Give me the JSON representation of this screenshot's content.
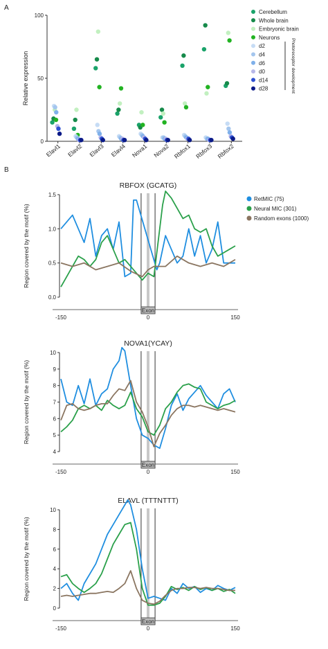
{
  "panels": {
    "a": "A",
    "b": "B"
  },
  "chart_data": [
    {
      "type": "scatter",
      "ylabel": "Relative expression",
      "ylim": [
        0,
        100
      ],
      "yticks": [
        0,
        50,
        100
      ],
      "categories": [
        "Elavl1",
        "Elavl2",
        "Elavl3",
        "Elavl4",
        "Nova1",
        "Nova2",
        "Rbfox1",
        "Rbfox3",
        "Rbfox2"
      ],
      "legend_side_label": "Photoreceptor development",
      "series": [
        {
          "name": "Cerebellum",
          "color": "#1aa36a",
          "values": [
            15,
            10,
            58,
            22,
            13,
            19,
            60,
            73,
            44
          ]
        },
        {
          "name": "Whole brain",
          "color": "#168a4a",
          "values": [
            18,
            17,
            65,
            25,
            11,
            25,
            68,
            92,
            46
          ]
        },
        {
          "name": "Embryonic brain",
          "color": "#c2f0c0",
          "values": [
            25,
            25,
            87,
            30,
            23,
            22,
            30,
            38,
            86
          ]
        },
        {
          "name": "Neurons",
          "color": "#22b322",
          "values": [
            17,
            5,
            43,
            42,
            13,
            15,
            27,
            43,
            80
          ]
        },
        {
          "name": "d2",
          "color": "#c6dcf5",
          "values": [
            28,
            4,
            13,
            4,
            6,
            3,
            5,
            3,
            14
          ]
        },
        {
          "name": "d4",
          "color": "#a4c6ee",
          "values": [
            27,
            3,
            8,
            3,
            5,
            3,
            4,
            2,
            10
          ]
        },
        {
          "name": "d6",
          "color": "#7fb0ea",
          "values": [
            23,
            2,
            6,
            2,
            4,
            2,
            3,
            2,
            7
          ]
        },
        {
          "name": "d0",
          "color": "#b7b7e8",
          "values": [
            12,
            1,
            3,
            2,
            3,
            2,
            2,
            1,
            4
          ]
        },
        {
          "name": "d14",
          "color": "#2d50d2",
          "values": [
            10,
            1,
            2,
            1,
            2,
            1,
            2,
            1,
            3
          ]
        },
        {
          "name": "d28",
          "color": "#0b1a88",
          "values": [
            6,
            1,
            1,
            1,
            1,
            1,
            1,
            1,
            2
          ]
        }
      ]
    },
    {
      "type": "line",
      "title": "RBFOX (GCATG)",
      "ylabel": "Region covered by the motif (%)",
      "ylim": [
        0,
        1.5
      ],
      "yticks": [
        0.0,
        0.5,
        1.0,
        1.5
      ],
      "xticks": [
        -150,
        0,
        150
      ],
      "xlim": [
        -150,
        150
      ],
      "exon_label": "Exon",
      "legend": "top-right",
      "series": [
        {
          "name": "RetMIC (75)",
          "color": "#1f8ee0",
          "x": [
            -150,
            -140,
            -130,
            -120,
            -110,
            -100,
            -90,
            -80,
            -70,
            -60,
            -50,
            -40,
            -30,
            -25,
            -20,
            15,
            20,
            30,
            40,
            50,
            60,
            70,
            80,
            90,
            100,
            110,
            120,
            130,
            140,
            150
          ],
          "y": [
            1.0,
            1.1,
            1.2,
            1.0,
            0.8,
            1.15,
            0.6,
            0.9,
            1.0,
            0.7,
            1.1,
            0.3,
            0.35,
            1.42,
            1.42,
            0.4,
            0.5,
            0.9,
            0.7,
            0.5,
            0.6,
            1.0,
            0.6,
            0.9,
            0.5,
            0.7,
            1.1,
            0.5,
            0.5,
            0.5
          ]
        },
        {
          "name": "Neural MIC (301)",
          "color": "#2aa04a",
          "x": [
            -150,
            -140,
            -130,
            -120,
            -110,
            -100,
            -90,
            -80,
            -70,
            -60,
            -50,
            -40,
            -30,
            -20,
            -10,
            0,
            10,
            20,
            25,
            30,
            40,
            50,
            60,
            70,
            80,
            90,
            100,
            110,
            120,
            130,
            140,
            150
          ],
          "y": [
            0.15,
            0.3,
            0.45,
            0.6,
            0.55,
            0.45,
            0.55,
            0.8,
            0.9,
            0.7,
            0.5,
            0.55,
            0.45,
            0.35,
            0.25,
            0.35,
            0.3,
            1.0,
            1.35,
            1.55,
            1.45,
            1.3,
            1.15,
            1.2,
            1.0,
            0.95,
            1.0,
            0.75,
            0.6,
            0.65,
            0.7,
            0.75
          ]
        },
        {
          "name": "Random exons (1000)",
          "color": "#8a7560",
          "x": [
            -150,
            -130,
            -110,
            -90,
            -70,
            -50,
            -30,
            -10,
            0,
            10,
            30,
            50,
            70,
            90,
            110,
            130,
            150
          ],
          "y": [
            0.5,
            0.45,
            0.5,
            0.4,
            0.45,
            0.5,
            0.38,
            0.3,
            0.4,
            0.45,
            0.45,
            0.6,
            0.5,
            0.45,
            0.5,
            0.45,
            0.55
          ]
        }
      ]
    },
    {
      "type": "line",
      "title": "NOVA1(YCAY)",
      "ylabel": "Region covered by the motif (%)",
      "ylim": [
        4,
        10
      ],
      "yticks": [
        4,
        5,
        6,
        7,
        8,
        9,
        10
      ],
      "xticks": [
        -150,
        0,
        150
      ],
      "xlim": [
        -150,
        150
      ],
      "exon_label": "Exon",
      "series": [
        {
          "name": "RetMIC (75)",
          "color": "#1f8ee0",
          "x": [
            -150,
            -140,
            -130,
            -120,
            -110,
            -100,
            -90,
            -80,
            -70,
            -60,
            -50,
            -45,
            -40,
            -30,
            -20,
            -10,
            0,
            10,
            20,
            30,
            40,
            50,
            60,
            70,
            80,
            90,
            100,
            110,
            120,
            130,
            140,
            150
          ],
          "y": [
            8.4,
            7.0,
            6.8,
            8.0,
            6.9,
            8.4,
            6.8,
            7.5,
            7.8,
            9.0,
            9.5,
            10.3,
            10.1,
            8.0,
            6.0,
            5.0,
            4.8,
            4.4,
            4.2,
            5.4,
            6.8,
            7.5,
            6.5,
            7.2,
            7.6,
            8.0,
            7.4,
            7.0,
            6.6,
            7.5,
            7.8,
            7.0
          ]
        },
        {
          "name": "Neural MIC (301)",
          "color": "#2aa04a",
          "x": [
            -150,
            -140,
            -130,
            -120,
            -110,
            -100,
            -90,
            -80,
            -70,
            -60,
            -50,
            -40,
            -30,
            -20,
            -10,
            0,
            10,
            20,
            30,
            40,
            50,
            60,
            70,
            80,
            90,
            100,
            110,
            120,
            130,
            140,
            150
          ],
          "y": [
            5.2,
            5.5,
            5.9,
            6.6,
            6.8,
            6.6,
            6.8,
            6.5,
            7.1,
            6.8,
            6.6,
            6.8,
            7.6,
            6.6,
            6.1,
            5.2,
            5.0,
            5.6,
            6.6,
            7.0,
            7.6,
            8.0,
            8.1,
            7.9,
            7.8,
            7.0,
            6.8,
            6.6,
            6.8,
            6.9,
            7.1
          ]
        },
        {
          "name": "Random exons (1000)",
          "color": "#8a7560",
          "x": [
            -150,
            -140,
            -130,
            -120,
            -110,
            -100,
            -90,
            -80,
            -70,
            -60,
            -50,
            -40,
            -30,
            -20,
            -10,
            0,
            10,
            20,
            30,
            40,
            50,
            60,
            70,
            80,
            90,
            100,
            110,
            120,
            130,
            140,
            150
          ],
          "y": [
            5.9,
            6.8,
            6.9,
            6.6,
            6.5,
            6.6,
            6.8,
            6.9,
            6.9,
            7.4,
            7.8,
            7.7,
            8.3,
            7.0,
            6.4,
            5.5,
            4.3,
            5.1,
            5.6,
            6.2,
            6.6,
            6.8,
            6.8,
            6.7,
            6.8,
            6.7,
            6.6,
            6.5,
            6.6,
            6.5,
            6.4
          ]
        }
      ]
    },
    {
      "type": "line",
      "title": "ELAVL (TTTNTTT)",
      "ylabel": "Region covered by the motif (%)",
      "ylim": [
        0,
        10
      ],
      "yticks": [
        0,
        2,
        4,
        6,
        8,
        10
      ],
      "xticks": [
        -150,
        0,
        150
      ],
      "xlim": [
        -150,
        150
      ],
      "exon_label": "Exon",
      "series": [
        {
          "name": "RetMIC (75)",
          "color": "#1f8ee0",
          "x": [
            -150,
            -140,
            -130,
            -120,
            -110,
            -100,
            -90,
            -80,
            -70,
            -60,
            -50,
            -40,
            -35,
            -30,
            -20,
            -10,
            0,
            10,
            20,
            30,
            40,
            50,
            60,
            70,
            80,
            90,
            100,
            110,
            120,
            130,
            140,
            150
          ],
          "y": [
            2.0,
            2.5,
            1.5,
            0.8,
            2.5,
            3.5,
            4.5,
            6.0,
            7.5,
            8.5,
            9.5,
            10.5,
            11.0,
            10.5,
            8.0,
            4.0,
            1.0,
            1.2,
            1.0,
            0.8,
            2.0,
            1.5,
            2.5,
            2.0,
            2.2,
            1.6,
            2.0,
            1.8,
            2.3,
            2.0,
            1.8,
            2.1
          ]
        },
        {
          "name": "Neural MIC (301)",
          "color": "#2aa04a",
          "x": [
            -150,
            -140,
            -130,
            -120,
            -110,
            -100,
            -90,
            -80,
            -70,
            -60,
            -50,
            -40,
            -30,
            -20,
            -10,
            0,
            10,
            20,
            30,
            40,
            50,
            60,
            70,
            80,
            90,
            100,
            110,
            120,
            130,
            140,
            150
          ],
          "y": [
            3.2,
            3.4,
            2.5,
            2.0,
            1.6,
            2.0,
            2.5,
            3.5,
            5.0,
            6.5,
            7.5,
            8.5,
            8.7,
            6.0,
            2.0,
            0.3,
            0.3,
            0.5,
            1.2,
            2.2,
            1.9,
            2.1,
            1.8,
            2.2,
            1.9,
            2.1,
            1.8,
            2.0,
            1.7,
            1.9,
            1.5
          ]
        },
        {
          "name": "Random exons (1000)",
          "color": "#8a7560",
          "x": [
            -150,
            -140,
            -130,
            -120,
            -110,
            -100,
            -90,
            -80,
            -70,
            -60,
            -50,
            -40,
            -30,
            -20,
            -10,
            0,
            10,
            20,
            30,
            40,
            50,
            60,
            70,
            80,
            90,
            100,
            110,
            120,
            130,
            140,
            150
          ],
          "y": [
            1.2,
            1.3,
            1.2,
            1.3,
            1.4,
            1.5,
            1.5,
            1.6,
            1.7,
            1.6,
            2.0,
            2.5,
            3.8,
            2.0,
            0.8,
            0.5,
            0.4,
            0.7,
            1.3,
            1.8,
            2.0,
            2.0,
            2.1,
            2.1,
            2.0,
            2.1,
            2.0,
            2.0,
            1.9,
            1.8,
            1.8
          ]
        }
      ]
    }
  ]
}
